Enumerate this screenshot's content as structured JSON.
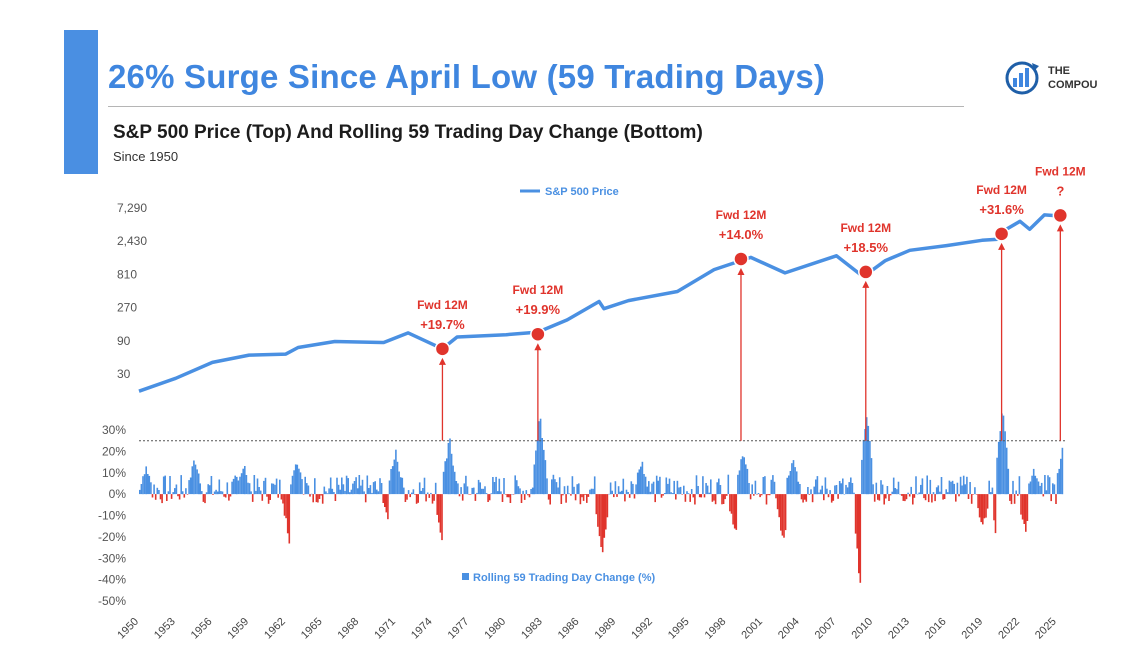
{
  "header": {
    "title": "26% Surge Since April Low (59 Trading Days)",
    "subtitle": "S&P 500 Price (Top) And Rolling 59 Trading Day Change (Bottom)",
    "since": "Since 1950",
    "logo_line1": "THE",
    "logo_line2": "COMPOU"
  },
  "colors": {
    "accent": "#4a8fe2",
    "price_line": "#4a90e2",
    "positive_bar": "#4a90e2",
    "negative_bar": "#e0342c",
    "event": "#e0342c"
  },
  "chart_data": [
    {
      "type": "line",
      "legend": "S&P 500 Price",
      "legend_position": "top-center",
      "y_scale": "log",
      "y_ticks": [
        30,
        90,
        270,
        810,
        2430,
        7290
      ],
      "y_tick_labels": [
        "30",
        "90",
        "270",
        "810",
        "2,430",
        "7,290"
      ],
      "xlim": [
        1950,
        2025.6
      ],
      "x": [
        1950,
        1953,
        1956,
        1959,
        1962,
        1963,
        1966,
        1970,
        1972,
        1974.8,
        1976,
        1980,
        1982.6,
        1985,
        1987.6,
        1988,
        1990,
        1994,
        1997,
        2000,
        2002.8,
        2007,
        2009.2,
        2011,
        2013,
        2016,
        2018.9,
        2020.2,
        2020.5,
        2022,
        2022.8,
        2024,
        2025.3
      ],
      "y": [
        17,
        26,
        44,
        56,
        58,
        72,
        88,
        85,
        117,
        69,
        102,
        110,
        120,
        180,
        330,
        260,
        340,
        460,
        950,
        1420,
        850,
        1500,
        750,
        1280,
        1800,
        2100,
        2500,
        2600,
        3300,
        4700,
        3600,
        5800,
        5600
      ],
      "events": [
        {
          "x": 1974.8,
          "y": 69,
          "label_top": "Fwd 12M",
          "label_bottom": "+19.7%"
        },
        {
          "x": 1982.6,
          "y": 112,
          "label_top": "Fwd 12M",
          "label_bottom": "+19.9%"
        },
        {
          "x": 1999.2,
          "y": 1350,
          "label_top": "Fwd 12M",
          "label_bottom": "+14.0%"
        },
        {
          "x": 2009.4,
          "y": 880,
          "label_top": "Fwd 12M",
          "label_bottom": "+18.5%"
        },
        {
          "x": 2020.5,
          "y": 3100,
          "label_top": "Fwd 12M",
          "label_bottom": "+31.6%"
        },
        {
          "x": 2025.3,
          "y": 5700,
          "label_top": "Fwd 12M",
          "label_bottom": "?"
        }
      ]
    },
    {
      "type": "bar",
      "legend": "Rolling 59 Trading Day Change (%)",
      "legend_position": "bottom-center",
      "ylim": [
        -50,
        30
      ],
      "y_ticks": [
        30,
        20,
        10,
        0,
        -10,
        -20,
        -30,
        -40,
        -50
      ],
      "y_tick_labels": [
        "30%",
        "20%",
        "10%",
        "0%",
        "-10%",
        "-20%",
        "-30%",
        "-40%",
        "-50%"
      ],
      "threshold": 25,
      "x_ticks": [
        1950,
        1953,
        1956,
        1959,
        1962,
        1965,
        1968,
        1971,
        1974,
        1977,
        1980,
        1983,
        1986,
        1989,
        1992,
        1995,
        1998,
        2001,
        2004,
        2007,
        2010,
        2013,
        2016,
        2019,
        2022,
        2025
      ],
      "x_tick_labels": [
        "1950",
        "1953",
        "1956",
        "1959",
        "1962",
        "1965",
        "1968",
        "1971",
        "1974",
        "1977",
        "1980",
        "1983",
        "1986",
        "1989",
        "1992",
        "1995",
        "1998",
        "2001",
        "2004",
        "2007",
        "2010",
        "2013",
        "2016",
        "2019",
        "2022",
        "2025"
      ],
      "highlight_peaks": [
        {
          "x": 1950.5,
          "y": 13
        },
        {
          "x": 1954.5,
          "y": 16
        },
        {
          "x": 1958.5,
          "y": 14
        },
        {
          "x": 1962.3,
          "y": -24
        },
        {
          "x": 1962.8,
          "y": 17
        },
        {
          "x": 1970.5,
          "y": -18
        },
        {
          "x": 1970.9,
          "y": 20
        },
        {
          "x": 1974.8,
          "y": -25
        },
        {
          "x": 1975.3,
          "y": 26
        },
        {
          "x": 1982.7,
          "y": 38
        },
        {
          "x": 1987.8,
          "y": -28
        },
        {
          "x": 1991,
          "y": 16
        },
        {
          "x": 1998.7,
          "y": -18
        },
        {
          "x": 1999.3,
          "y": 20
        },
        {
          "x": 2002.6,
          "y": -23
        },
        {
          "x": 2003.4,
          "y": 18
        },
        {
          "x": 2008.9,
          "y": -44
        },
        {
          "x": 2009.4,
          "y": 38
        },
        {
          "x": 2018.9,
          "y": -15
        },
        {
          "x": 2020.2,
          "y": -30
        },
        {
          "x": 2020.5,
          "y": 40
        },
        {
          "x": 2022.4,
          "y": -17
        },
        {
          "x": 2023.1,
          "y": 12
        },
        {
          "x": 2025.3,
          "y": -15
        },
        {
          "x": 2025.5,
          "y": 26
        }
      ]
    }
  ]
}
